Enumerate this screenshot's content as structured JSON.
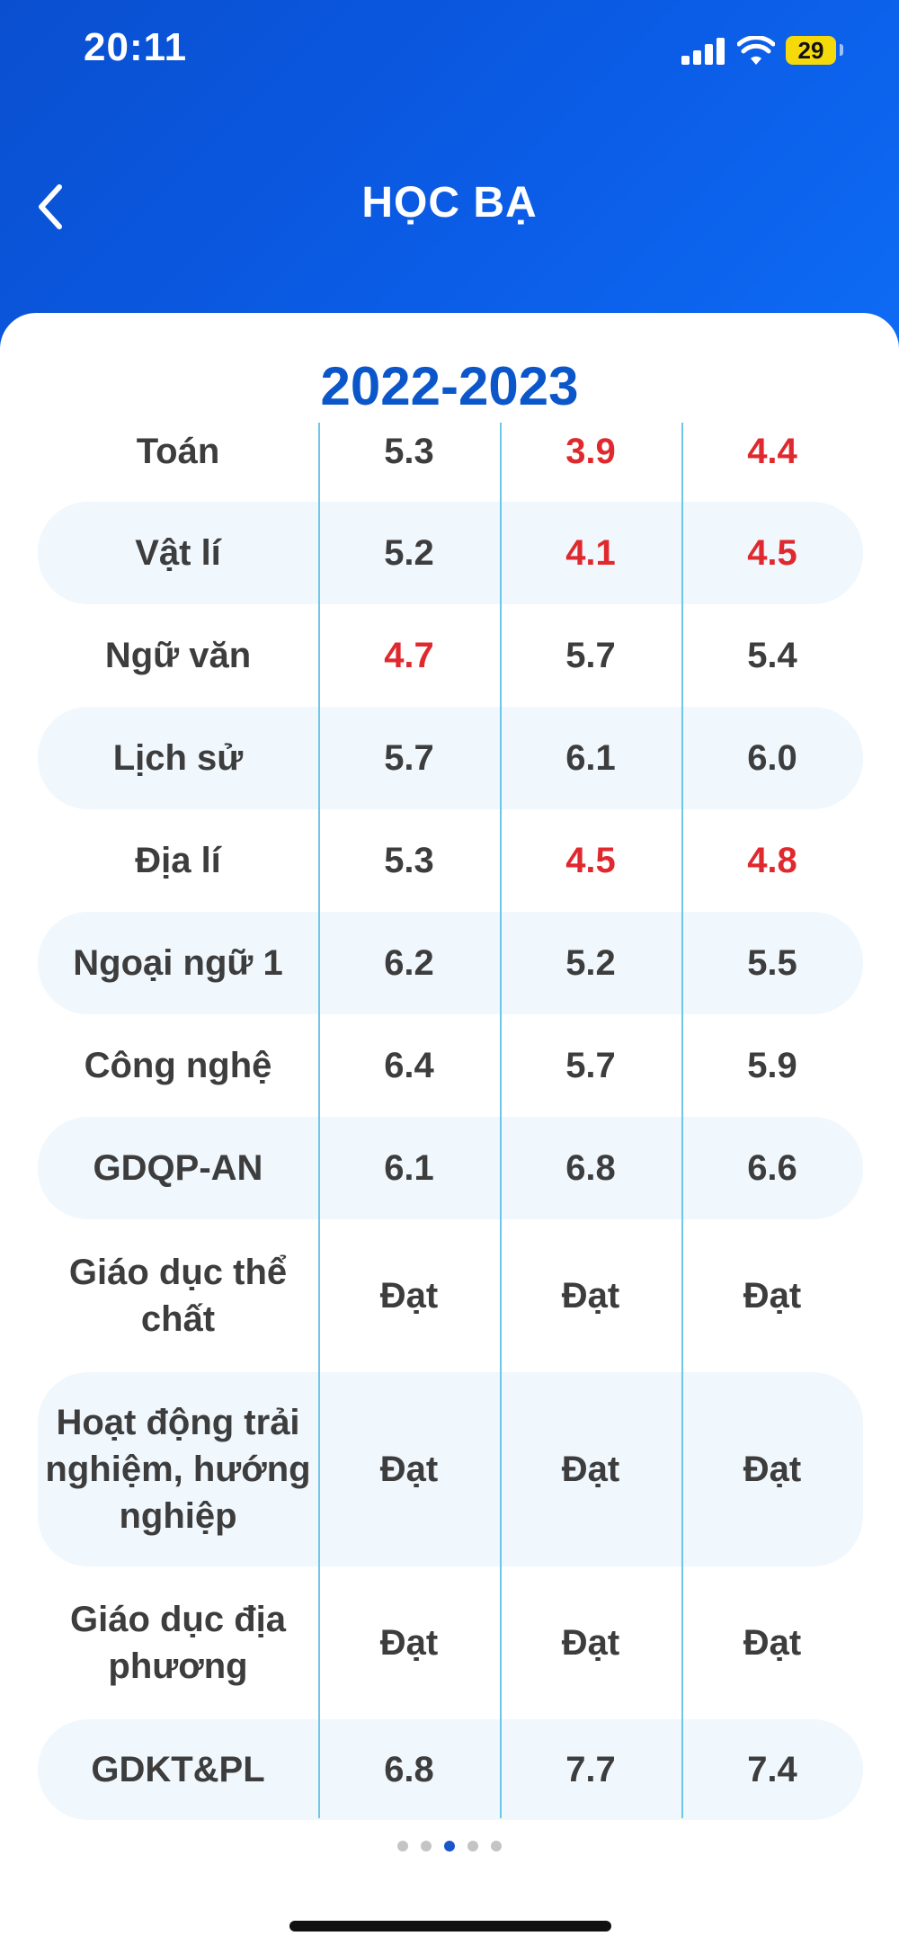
{
  "status_bar": {
    "time": "20:11",
    "battery": "29"
  },
  "header": {
    "title": "HỌC BẠ",
    "back_icon": "chevron-left-icon"
  },
  "report": {
    "year": "2022-2023",
    "rows": [
      {
        "subject": "Toán",
        "values": [
          "5.3",
          "3.9",
          "4.4"
        ],
        "low": [
          false,
          true,
          true
        ]
      },
      {
        "subject": "Vật lí",
        "values": [
          "5.2",
          "4.1",
          "4.5"
        ],
        "low": [
          false,
          true,
          true
        ]
      },
      {
        "subject": "Ngữ văn",
        "values": [
          "4.7",
          "5.7",
          "5.4"
        ],
        "low": [
          true,
          false,
          false
        ]
      },
      {
        "subject": "Lịch sử",
        "values": [
          "5.7",
          "6.1",
          "6.0"
        ],
        "low": [
          false,
          false,
          false
        ]
      },
      {
        "subject": "Địa lí",
        "values": [
          "5.3",
          "4.5",
          "4.8"
        ],
        "low": [
          false,
          true,
          true
        ]
      },
      {
        "subject": "Ngoại ngữ 1",
        "values": [
          "6.2",
          "5.2",
          "5.5"
        ],
        "low": [
          false,
          false,
          false
        ]
      },
      {
        "subject": "Công nghệ",
        "values": [
          "6.4",
          "5.7",
          "5.9"
        ],
        "low": [
          false,
          false,
          false
        ]
      },
      {
        "subject": "GDQP-AN",
        "values": [
          "6.1",
          "6.8",
          "6.6"
        ],
        "low": [
          false,
          false,
          false
        ]
      },
      {
        "subject": "Giáo dục thể chất",
        "values": [
          "Đạt",
          "Đạt",
          "Đạt"
        ],
        "low": [
          false,
          false,
          false
        ]
      },
      {
        "subject": "Hoạt động trải nghiệm, hướng nghiệp",
        "values": [
          "Đạt",
          "Đạt",
          "Đạt"
        ],
        "low": [
          false,
          false,
          false
        ]
      },
      {
        "subject": "Giáo dục địa phương",
        "values": [
          "Đạt",
          "Đạt",
          "Đạt"
        ],
        "low": [
          false,
          false,
          false
        ]
      },
      {
        "subject": "GDKT&PL",
        "values": [
          "6.8",
          "7.7",
          "7.4"
        ],
        "low": [
          false,
          false,
          false
        ]
      }
    ]
  },
  "pagination": {
    "total": 5,
    "active": 3
  },
  "colors": {
    "header_blue": "#0b5ce6",
    "year_blue": "#0b56c9",
    "low_score_red": "#e0292e",
    "text_dark": "#3d3d3d",
    "row_shade": "#f0f7fd",
    "divider": "#6fc6e8"
  }
}
